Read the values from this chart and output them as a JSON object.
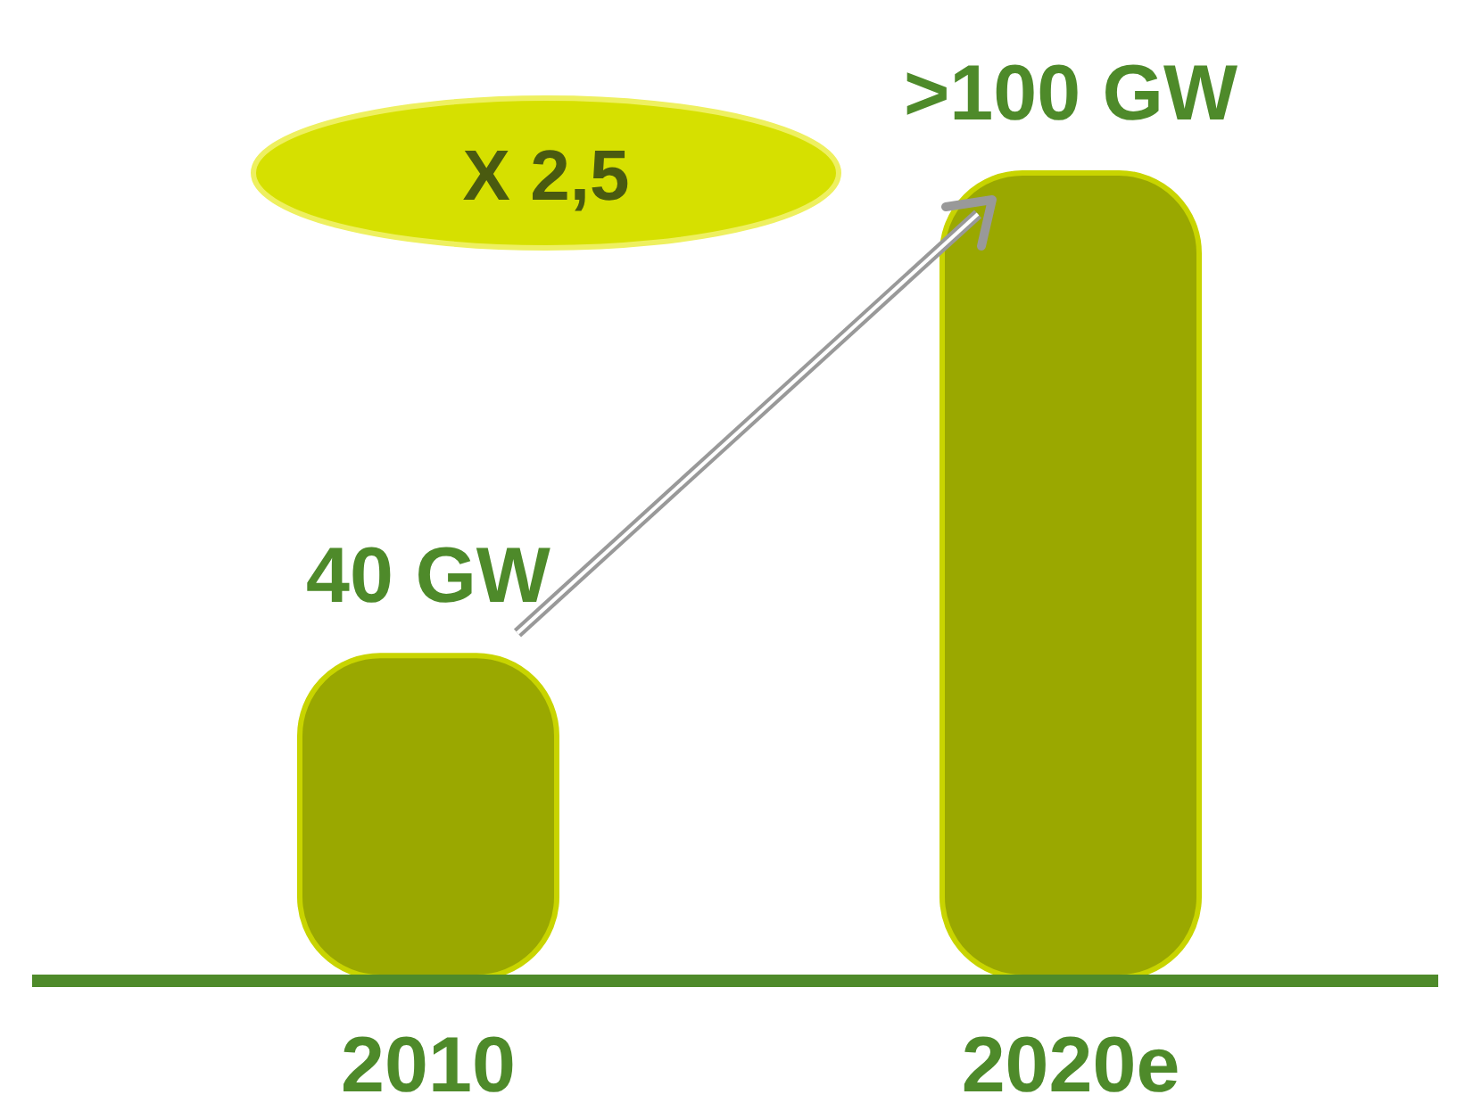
{
  "chart_data": {
    "type": "bar",
    "categories": [
      "2010",
      "2020e"
    ],
    "values": [
      40,
      100
    ],
    "value_labels": [
      "40 GW",
      ">100 GW"
    ],
    "color": "#9aa800",
    "annotations": [
      "X 2,5"
    ]
  }
}
